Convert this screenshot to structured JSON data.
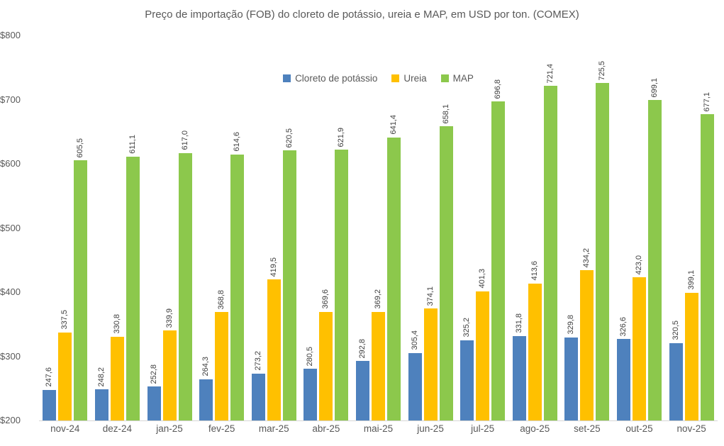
{
  "chart_data": {
    "type": "bar",
    "title": "Preço de importação (FOB) do cloreto de potássio, ureia e MAP, em USD por ton. (COMEX)",
    "categories": [
      "nov-24",
      "dez-24",
      "jan-25",
      "fev-25",
      "mar-25",
      "abr-25",
      "mai-25",
      "jun-25",
      "jul-25",
      "ago-25",
      "set-25",
      "out-25",
      "nov-25"
    ],
    "series": [
      {
        "name": "Cloreto de potássio",
        "color": "#4e81bd",
        "values": [
          247.6,
          248.2,
          252.8,
          264.3,
          273.2,
          280.5,
          292.8,
          305.4,
          325.2,
          331.8,
          329.8,
          326.6,
          320.5
        ]
      },
      {
        "name": "Ureia",
        "color": "#ffc000",
        "values": [
          337.5,
          330.8,
          339.9,
          368.8,
          419.5,
          369.6,
          369.2,
          374.1,
          401.3,
          413.6,
          434.2,
          423.0,
          399.1
        ]
      },
      {
        "name": "MAP",
        "color": "#8cc84c",
        "values": [
          605.5,
          611.1,
          617.0,
          614.6,
          620.5,
          621.9,
          641.4,
          658.1,
          696.8,
          721.4,
          725.5,
          699.1,
          677.1
        ]
      }
    ],
    "xlabel": "",
    "ylabel": "",
    "y_axis": {
      "min": 200,
      "max": 800,
      "step": 100,
      "tick_labels": [
        "$200",
        "$300",
        "$400",
        "$500",
        "$600",
        "$700",
        "$800"
      ]
    },
    "data_label_decimal_separator": ",",
    "grid": false,
    "legend_position": "top-center-inside",
    "text_color": "#595959",
    "axis_line_color": "#d6d6d6"
  }
}
